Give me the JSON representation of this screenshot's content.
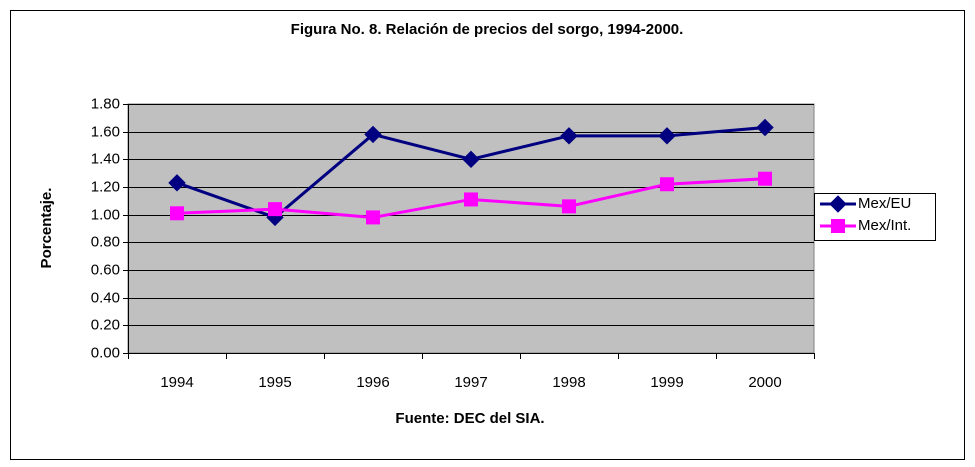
{
  "chart_data": {
    "type": "line",
    "title": "Figura No. 8. Relación de precios del sorgo, 1994-2000.",
    "y_label": "Porcentaje.",
    "x_label": "Fuente: DEC del SIA.",
    "categories": [
      "1994",
      "1995",
      "1996",
      "1997",
      "1998",
      "1999",
      "2000"
    ],
    "series": [
      {
        "name": "Mex/EU",
        "color": "#000080",
        "marker": "diamond",
        "values": [
          1.23,
          0.98,
          1.58,
          1.4,
          1.57,
          1.57,
          1.63
        ]
      },
      {
        "name": "Mex/Int.",
        "color": "#ff00ff",
        "marker": "square",
        "values": [
          1.01,
          1.04,
          0.98,
          1.11,
          1.06,
          1.22,
          1.26
        ]
      }
    ],
    "ylim": [
      0,
      1.8
    ],
    "yticks": [
      {
        "value": 0,
        "label": "0.00"
      },
      {
        "value": 0.2,
        "label": "0.20"
      },
      {
        "value": 0.4,
        "label": "0.40"
      },
      {
        "value": 0.6,
        "label": "0.60"
      },
      {
        "value": 0.8,
        "label": "0.80"
      },
      {
        "value": 1,
        "label": "1.00"
      },
      {
        "value": 1.2,
        "label": "1.20"
      },
      {
        "value": 1.4,
        "label": "1.40"
      },
      {
        "value": 1.6,
        "label": "1.60"
      },
      {
        "value": 1.8,
        "label": "1.80"
      }
    ],
    "grid": true,
    "plot_background": "#c0c0c0",
    "legend": "right"
  }
}
